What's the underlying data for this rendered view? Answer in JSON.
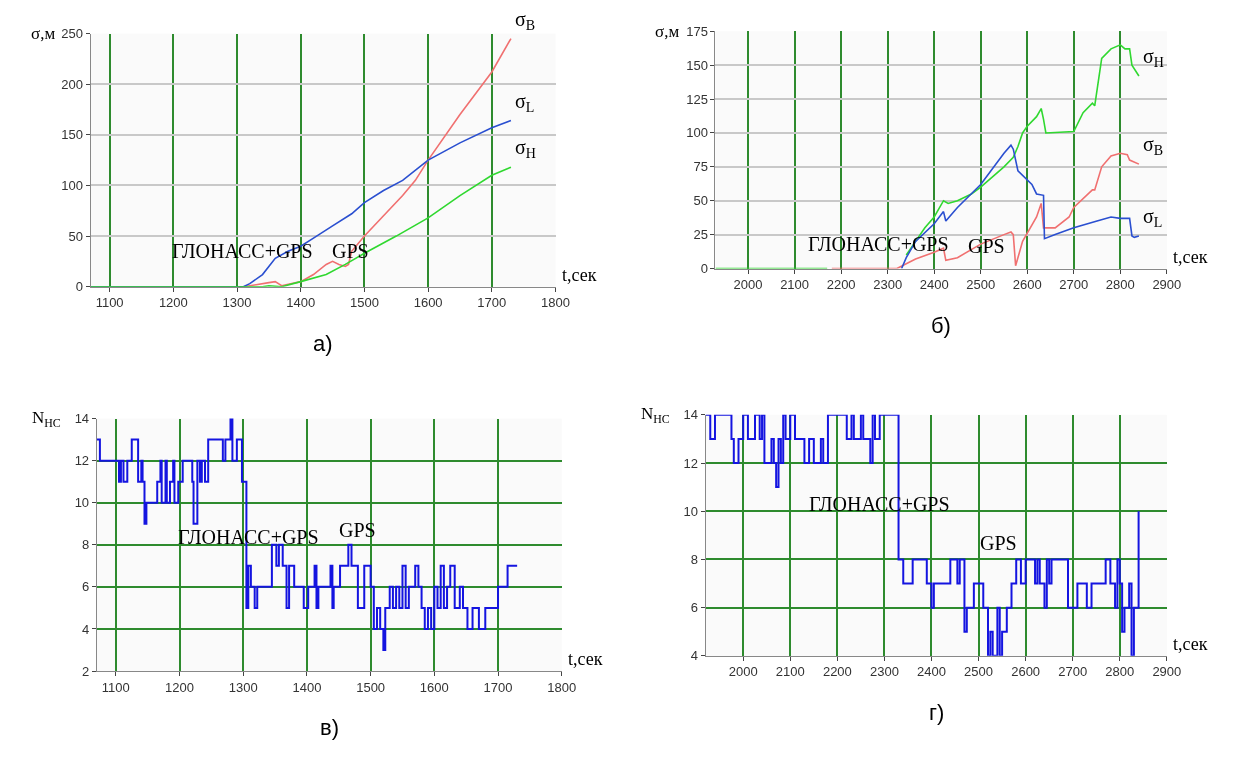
{
  "chart_data": [
    {
      "type": "line",
      "title": "а)",
      "xlabel": "t,сек",
      "ylabel": "σ,м",
      "xlim": [
        1070,
        1800
      ],
      "xticks": [
        1100,
        1200,
        1300,
        1400,
        1500,
        1600,
        1700,
        1800
      ],
      "ylim": [
        0,
        250
      ],
      "yticks": [
        0,
        50,
        100,
        150,
        200,
        250
      ],
      "grid": true,
      "annotations": [
        "ГЛОНАСС+GPS",
        "GPS"
      ],
      "series": [
        {
          "name": "σ$_{B}$",
          "color": "#f07070",
          "x": [
            1070,
            1310,
            1330,
            1350,
            1360,
            1370,
            1400,
            1420,
            1440,
            1450,
            1460,
            1470,
            1475,
            1480,
            1500,
            1530,
            1560,
            1580,
            1600,
            1650,
            1700,
            1730
          ],
          "values": [
            0,
            0,
            2,
            4,
            5,
            1,
            5,
            12,
            22,
            25,
            22,
            20,
            22,
            35,
            50,
            70,
            90,
            105,
            125,
            170,
            212,
            245
          ]
        },
        {
          "name": "σ$_{L}$",
          "color": "#2a4fd0",
          "x": [
            1070,
            1310,
            1320,
            1340,
            1360,
            1380,
            1400,
            1420,
            1450,
            1480,
            1500,
            1530,
            1560,
            1600,
            1650,
            1700,
            1730
          ],
          "values": [
            0,
            0,
            3,
            12,
            28,
            35,
            40,
            48,
            60,
            72,
            83,
            95,
            105,
            125,
            142,
            157,
            164
          ]
        },
        {
          "name": "σ$_{H}$",
          "color": "#30d830",
          "x": [
            1070,
            1340,
            1350,
            1370,
            1400,
            1440,
            1470,
            1500,
            1550,
            1600,
            1650,
            1700,
            1730
          ],
          "values": [
            0,
            0,
            1,
            0,
            5,
            12,
            22,
            33,
            50,
            68,
            90,
            110,
            118
          ]
        }
      ]
    },
    {
      "type": "line",
      "title": "б)",
      "xlabel": "t,сек",
      "ylabel": "σ,м",
      "xlim": [
        1930,
        2900
      ],
      "xticks": [
        2000,
        2100,
        2200,
        2300,
        2400,
        2500,
        2600,
        2700,
        2800,
        2900
      ],
      "ylim": [
        0,
        175
      ],
      "yticks": [
        0,
        25,
        50,
        75,
        100,
        125,
        150,
        175
      ],
      "grid": true,
      "annotations": [
        "ГЛОНАСС+GPS",
        "GPS"
      ],
      "series": [
        {
          "name": "σ$_{H}$",
          "color": "#30d830",
          "x": [
            1930,
            2170,
            2175,
            2340,
            2360,
            2380,
            2400,
            2420,
            2430,
            2450,
            2480,
            2500,
            2550,
            2570,
            2580,
            2590,
            2600,
            2620,
            2630,
            2635,
            2640,
            2700,
            2720,
            2740,
            2745,
            2760,
            2780,
            2800,
            2810,
            2820,
            2825,
            2840
          ],
          "values": [
            0,
            0,
            null,
            10,
            20,
            30,
            38,
            50,
            48,
            50,
            55,
            60,
            75,
            82,
            90,
            100,
            105,
            112,
            118,
            110,
            100,
            101,
            115,
            122,
            120,
            155,
            162,
            165,
            162,
            162,
            150,
            142
          ]
        },
        {
          "name": "σ$_{B}$",
          "color": "#f07070",
          "x": [
            2180,
            2320,
            2360,
            2400,
            2420,
            2425,
            2450,
            2500,
            2550,
            2565,
            2570,
            2575,
            2590,
            2620,
            2630,
            2635,
            2660,
            2690,
            2700,
            2740,
            2745,
            2760,
            2780,
            2800,
            2815,
            2820,
            2840
          ],
          "values": [
            0,
            0,
            7,
            12,
            15,
            6,
            8,
            18,
            25,
            27,
            25,
            2,
            20,
            38,
            48,
            30,
            30,
            38,
            45,
            58,
            58,
            75,
            83,
            85,
            84,
            80,
            77
          ]
        },
        {
          "name": "σ$_{L}$",
          "color": "#2a4fd0",
          "x": [
            2330,
            2340,
            2360,
            2400,
            2420,
            2425,
            2450,
            2500,
            2550,
            2565,
            2570,
            2580,
            2610,
            2620,
            2635,
            2637,
            2660,
            2700,
            2750,
            2780,
            2800,
            2820,
            2825,
            2830,
            2840
          ],
          "values": [
            0,
            8,
            20,
            33,
            42,
            35,
            45,
            62,
            85,
            91,
            88,
            72,
            62,
            55,
            54,
            22,
            25,
            30,
            35,
            38,
            37,
            37,
            24,
            23,
            24
          ]
        }
      ]
    },
    {
      "type": "step",
      "title": "в)",
      "xlabel": "t,сек",
      "ylabel": "N$_{НС}$",
      "xlim": [
        1070,
        1800
      ],
      "xticks": [
        1100,
        1200,
        1300,
        1400,
        1500,
        1600,
        1700,
        1800
      ],
      "ylim": [
        2,
        14
      ],
      "yticks": [
        2,
        4,
        6,
        8,
        10,
        12,
        14
      ],
      "grid": true,
      "annotations": [
        "ГЛОНАСС+GPS",
        "GPS"
      ],
      "series": [
        {
          "color": "#1414e0",
          "x": [
            1070,
            1075,
            1105,
            1108,
            1112,
            1118,
            1125,
            1135,
            1140,
            1142,
            1145,
            1148,
            1165,
            1170,
            1172,
            1178,
            1180,
            1185,
            1190,
            1192,
            1198,
            1205,
            1220,
            1222,
            1228,
            1232,
            1235,
            1240,
            1245,
            1268,
            1272,
            1280,
            1283,
            1290,
            1298,
            1305,
            1308,
            1312,
            1318,
            1322,
            1345,
            1352,
            1356,
            1362,
            1368,
            1372,
            1380,
            1395,
            1402,
            1412,
            1415,
            1418,
            1437,
            1440,
            1442,
            1452,
            1465,
            1470,
            1480,
            1490,
            1500,
            1505,
            1510,
            1515,
            1520,
            1523,
            1530,
            1535,
            1540,
            1545,
            1550,
            1555,
            1560,
            1570,
            1575,
            1580,
            1585,
            1590,
            1595,
            1600,
            1605,
            1610,
            1615,
            1620,
            1625,
            1632,
            1640,
            1645,
            1652,
            1660,
            1670,
            1680,
            1700,
            1715,
            1730
          ],
          "values": [
            13,
            12,
            11,
            12,
            11,
            12,
            13,
            11,
            12,
            11,
            9,
            10,
            11,
            12,
            10,
            12,
            10,
            11,
            12,
            10,
            11,
            12,
            11,
            9,
            12,
            11,
            12,
            11,
            13,
            12,
            13,
            14,
            12,
            13,
            11,
            5,
            7,
            6,
            5,
            6,
            8,
            7,
            8,
            7,
            5,
            7,
            6,
            5,
            6,
            7,
            5,
            6,
            7,
            5,
            6,
            7,
            8,
            7,
            5,
            7,
            6,
            4,
            5,
            4,
            3,
            5,
            6,
            5,
            6,
            5,
            7,
            5,
            6,
            7,
            6,
            5,
            4,
            5,
            4,
            6,
            5,
            7,
            5,
            6,
            7,
            5,
            6,
            5,
            4,
            5,
            4,
            5,
            6,
            7,
            7
          ]
        }
      ]
    },
    {
      "type": "step",
      "title": "г)",
      "xlabel": "t,сек",
      "ylabel": "N$_{НС}$",
      "xlim": [
        1920,
        2900
      ],
      "xticks": [
        2000,
        2100,
        2200,
        2300,
        2400,
        2500,
        2600,
        2700,
        2800,
        2900
      ],
      "ylim": [
        4,
        14
      ],
      "yticks": [
        4,
        6,
        8,
        10,
        12,
        14
      ],
      "grid": true,
      "annotations": [
        "ГЛОНАСС+GPS",
        "GPS"
      ],
      "series": [
        {
          "color": "#1414e0",
          "x": [
            1920,
            1930,
            1940,
            1975,
            1980,
            1990,
            2000,
            2010,
            2025,
            2035,
            2040,
            2045,
            2060,
            2065,
            2070,
            2075,
            2080,
            2085,
            2090,
            2100,
            2110,
            2130,
            2140,
            2150,
            2165,
            2170,
            2180,
            2220,
            2230,
            2235,
            2250,
            2255,
            2270,
            2275,
            2280,
            2290,
            2330,
            2340,
            2360,
            2390,
            2400,
            2405,
            2440,
            2455,
            2460,
            2470,
            2475,
            2490,
            2510,
            2520,
            2525,
            2530,
            2540,
            2545,
            2550,
            2560,
            2570,
            2580,
            2590,
            2600,
            2620,
            2625,
            2630,
            2640,
            2645,
            2650,
            2655,
            2690,
            2710,
            2730,
            2740,
            2770,
            2780,
            2790,
            2795,
            2800,
            2805,
            2810,
            2820,
            2825,
            2830,
            2840
          ],
          "values": [
            14,
            13,
            14,
            13,
            12,
            13,
            14,
            13,
            14,
            13,
            14,
            12,
            13,
            12,
            11,
            13,
            12,
            14,
            13,
            14,
            13,
            12,
            13,
            12,
            13,
            12,
            14,
            13,
            14,
            13,
            14,
            13,
            12,
            14,
            13,
            14,
            8,
            7,
            8,
            7,
            6,
            7,
            8,
            7,
            8,
            5,
            6,
            7,
            6,
            4,
            5,
            4,
            6,
            4,
            5,
            6,
            7,
            8,
            7,
            8,
            7,
            8,
            7,
            6,
            8,
            7,
            8,
            6,
            7,
            6,
            7,
            8,
            7,
            6,
            8,
            7,
            5,
            6,
            7,
            4,
            6,
            10
          ]
        }
      ]
    }
  ]
}
